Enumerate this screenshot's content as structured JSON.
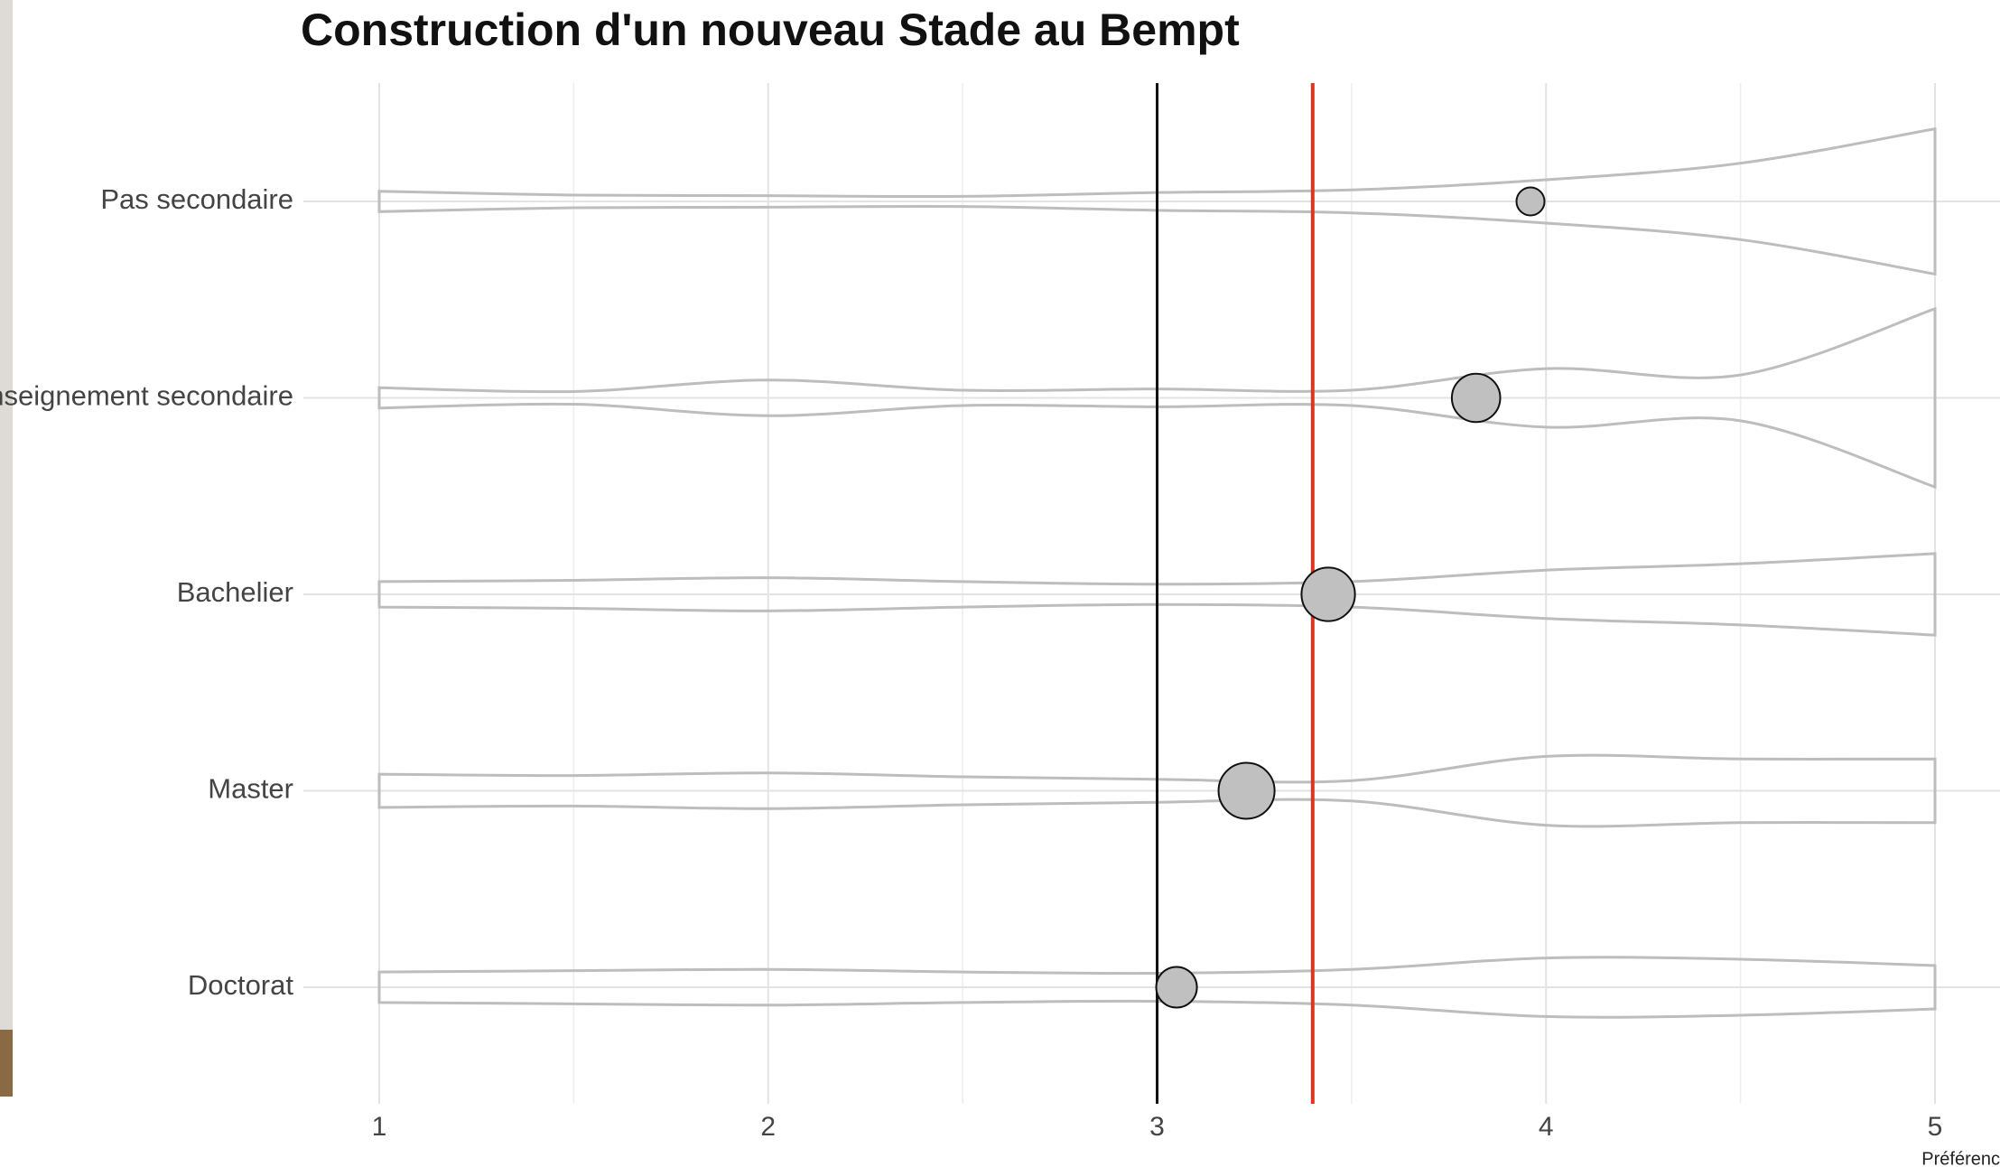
{
  "chart_data": {
    "type": "violin",
    "title": "Construction d'un nouveau Stade au Bempt",
    "x_label": "Préférenc",
    "categories": [
      "Pas secondaire",
      "Enseignement secondaire",
      "Bachelier",
      "Master",
      "Doctorat"
    ],
    "values": [
      3.96,
      3.82,
      3.44,
      3.23,
      3.05
    ],
    "sizes": [
      11,
      19,
      21,
      22,
      16
    ],
    "violin_x": [
      1,
      1.5,
      2,
      2.5,
      3,
      3.5,
      4,
      4.5,
      5
    ],
    "densities": [
      [
        8,
        5,
        4.5,
        4,
        7,
        9,
        17,
        30,
        57
      ],
      [
        8,
        5,
        14,
        6,
        7,
        6,
        23,
        18,
        70
      ],
      [
        10,
        11,
        13,
        10,
        8,
        10,
        19,
        24,
        32
      ],
      [
        13,
        12,
        14,
        11,
        9,
        8,
        27,
        25,
        25
      ],
      [
        12,
        13,
        14,
        12,
        11,
        14,
        23,
        22,
        17
      ]
    ],
    "violin_color": "#bdbdbd",
    "point_color": "#c0c0c0",
    "reference_lines": [
      {
        "value": 3,
        "color": "#111111"
      },
      {
        "value": 3.4,
        "color": "#d9381e"
      }
    ],
    "xlim": [
      1,
      5
    ],
    "xticks": [
      1,
      2,
      3,
      4,
      5
    ],
    "minor_xticks": [
      1.5,
      2.5,
      3.5,
      4.5
    ],
    "grid": true
  }
}
